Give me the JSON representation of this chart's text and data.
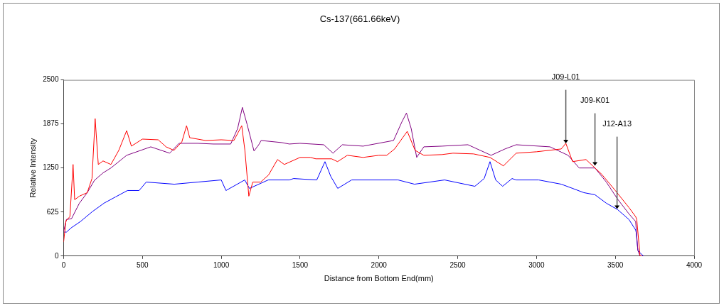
{
  "chart_data": {
    "type": "line",
    "title": "Cs-137(661.66keV)",
    "xlabel": "Distance from Bottom End(mm)",
    "ylabel": "Relative Intensity",
    "xlim": [
      0,
      4000
    ],
    "xticks": [
      0,
      500,
      1000,
      1500,
      2000,
      2500,
      3000,
      3500,
      4000
    ],
    "ylim": [
      0,
      2500
    ],
    "yticks": [
      0,
      625,
      1250,
      1875,
      2500
    ],
    "grid": false,
    "legend": false,
    "marker": "none",
    "line_style": "solid",
    "annotations": [
      {
        "text": "J09-L01",
        "x": 3186,
        "y": 1600
      },
      {
        "text": "J09-K01",
        "x": 3371,
        "y": 1282
      },
      {
        "text": "J12-A13",
        "x": 3511,
        "y": 669
      }
    ],
    "series": [
      {
        "color": "#ff0000",
        "x": [
          0,
          15,
          40,
          60,
          70,
          100,
          150,
          180,
          200,
          220,
          250,
          300,
          350,
          400,
          430,
          500,
          600,
          650,
          700,
          750,
          780,
          800,
          900,
          1000,
          1080,
          1130,
          1150,
          1175,
          1200,
          1250,
          1300,
          1357,
          1400,
          1500,
          1565,
          1600,
          1700,
          1738,
          1800,
          1900,
          2000,
          2050,
          2100,
          2180,
          2230,
          2285,
          2400,
          2470,
          2600,
          2705,
          2790,
          2871,
          3000,
          3157,
          3186,
          3229,
          3314,
          3414,
          3500,
          3586,
          3629,
          3636,
          3657,
          3670
        ],
        "values": [
          200,
          500,
          560,
          1300,
          800,
          850,
          900,
          1100,
          1950,
          1300,
          1350,
          1300,
          1500,
          1780,
          1560,
          1660,
          1650,
          1550,
          1500,
          1620,
          1850,
          1680,
          1640,
          1650,
          1640,
          1850,
          1500,
          850,
          1050,
          1050,
          1150,
          1370,
          1300,
          1400,
          1400,
          1380,
          1380,
          1340,
          1430,
          1400,
          1430,
          1430,
          1520,
          1770,
          1500,
          1430,
          1440,
          1460,
          1450,
          1400,
          1280,
          1460,
          1480,
          1520,
          1600,
          1340,
          1370,
          1160,
          930,
          690,
          560,
          520,
          0,
          0
        ]
      },
      {
        "color": "#800080",
        "x": [
          0,
          18,
          50,
          100,
          150,
          196,
          250,
          300,
          400,
          553,
          673,
          732,
          851,
          950,
          1060,
          1104,
          1134,
          1164,
          1208,
          1238,
          1253,
          1385,
          1432,
          1500,
          1650,
          1709,
          1768,
          1900,
          2093,
          2145,
          2175,
          2205,
          2240,
          2285,
          2400,
          2565,
          2712,
          2800,
          2871,
          3086,
          3200,
          3271,
          3371,
          3443,
          3514,
          3586,
          3629,
          3643,
          3657,
          3680
        ],
        "values": [
          350,
          520,
          530,
          750,
          900,
          1076,
          1180,
          1250,
          1430,
          1550,
          1460,
          1600,
          1600,
          1590,
          1590,
          1810,
          2110,
          1870,
          1490,
          1580,
          1640,
          1610,
          1590,
          1600,
          1580,
          1460,
          1580,
          1560,
          1640,
          1900,
          2030,
          1810,
          1400,
          1550,
          1560,
          1580,
          1430,
          1520,
          1580,
          1550,
          1430,
          1250,
          1250,
          1050,
          810,
          600,
          490,
          80,
          0,
          0
        ]
      },
      {
        "color": "#0000ff",
        "x": [
          3,
          18,
          48,
          107,
          182,
          256,
          330,
          405,
          479,
          524,
          702,
          851,
          1000,
          1030,
          1149,
          1179,
          1298,
          1432,
          1459,
          1606,
          1658,
          1695,
          1739,
          1827,
          2122,
          2226,
          2417,
          2609,
          2668,
          2705,
          2741,
          2785,
          2845,
          2871,
          3014,
          3157,
          3229,
          3300,
          3371,
          3443,
          3514,
          3586,
          3629,
          3632,
          3643,
          3664,
          3680
        ],
        "values": [
          340,
          340,
          400,
          490,
          630,
          750,
          840,
          930,
          930,
          1050,
          1020,
          1050,
          1080,
          930,
          1080,
          960,
          1080,
          1080,
          1100,
          1080,
          1340,
          1130,
          960,
          1080,
          1080,
          1020,
          1080,
          990,
          1100,
          1340,
          1080,
          990,
          1100,
          1080,
          1080,
          1020,
          960,
          900,
          870,
          750,
          660,
          520,
          370,
          340,
          80,
          30,
          0
        ]
      }
    ]
  }
}
